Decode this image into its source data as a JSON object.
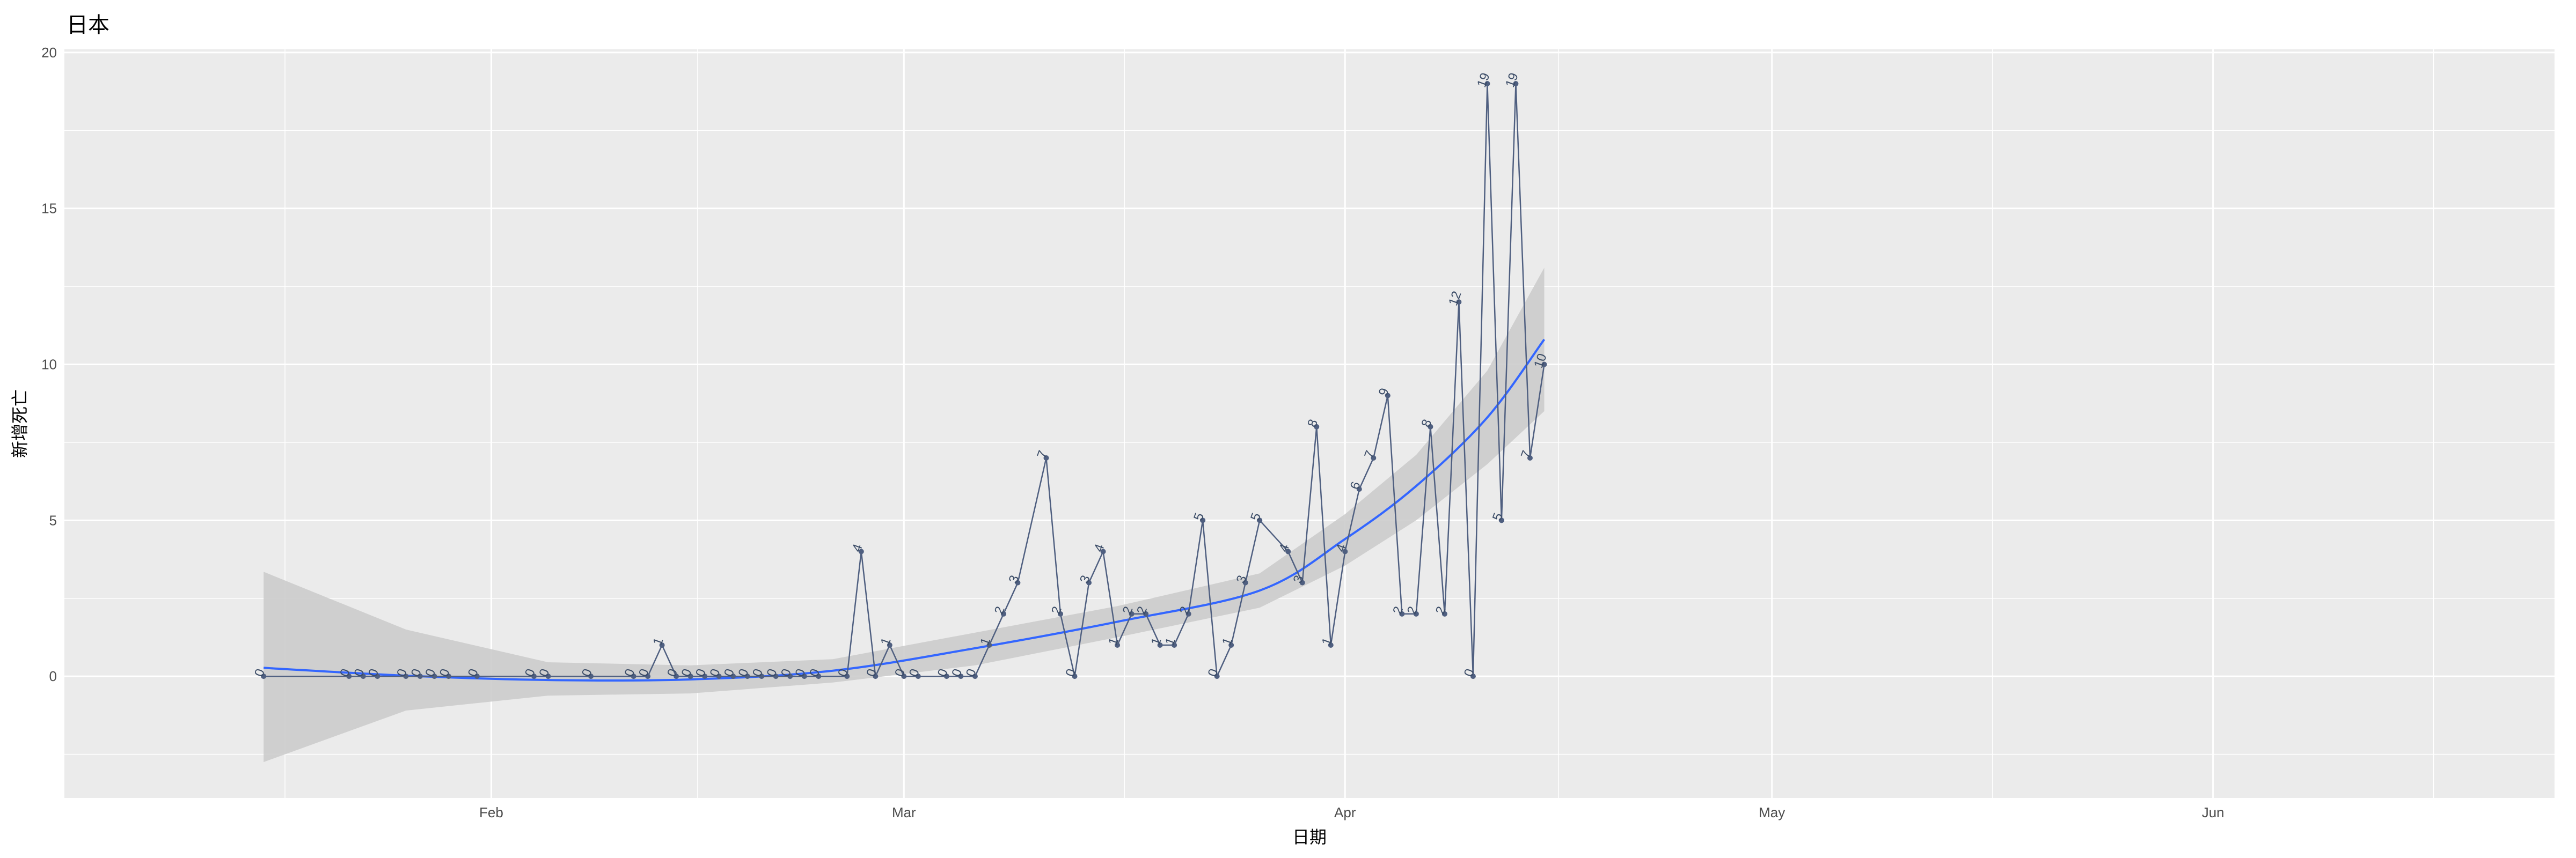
{
  "chart_data": {
    "type": "line",
    "title": "日本",
    "xlabel": "日期",
    "ylabel": "新增死亡",
    "x_range": [
      "2020-01-02",
      "2020-06-25"
    ],
    "ylim": [
      -3.9,
      20.1
    ],
    "y_ticks": [
      0,
      5,
      10,
      15,
      20
    ],
    "x_ticks": [
      {
        "date": "2020-02-01",
        "label": "Feb"
      },
      {
        "date": "2020-03-01",
        "label": "Mar"
      },
      {
        "date": "2020-04-01",
        "label": "Apr"
      },
      {
        "date": "2020-05-01",
        "label": "May"
      },
      {
        "date": "2020-06-01",
        "label": "Jun"
      }
    ],
    "grid": true,
    "colors": {
      "panel": "#ebebeb",
      "grid": "#ffffff",
      "line": "#4f5f80",
      "smooth": "#3366ff",
      "ribbon": "#cccccc"
    },
    "series": [
      {
        "values": [
          [
            "2020-01-16",
            0
          ],
          [
            "2020-01-22",
            0
          ],
          [
            "2020-01-23",
            0
          ],
          [
            "2020-01-24",
            0
          ],
          [
            "2020-01-26",
            0
          ],
          [
            "2020-01-27",
            0
          ],
          [
            "2020-01-28",
            0
          ],
          [
            "2020-01-29",
            0
          ],
          [
            "2020-01-31",
            0
          ],
          [
            "2020-02-04",
            0
          ],
          [
            "2020-02-05",
            0
          ],
          [
            "2020-02-08",
            0
          ],
          [
            "2020-02-11",
            0
          ],
          [
            "2020-02-12",
            0
          ],
          [
            "2020-02-13",
            1
          ],
          [
            "2020-02-14",
            0
          ],
          [
            "2020-02-15",
            0
          ],
          [
            "2020-02-16",
            0
          ],
          [
            "2020-02-17",
            0
          ],
          [
            "2020-02-18",
            0
          ],
          [
            "2020-02-19",
            0
          ],
          [
            "2020-02-20",
            0
          ],
          [
            "2020-02-21",
            0
          ],
          [
            "2020-02-22",
            0
          ],
          [
            "2020-02-23",
            0
          ],
          [
            "2020-02-24",
            0
          ],
          [
            "2020-02-26",
            0
          ],
          [
            "2020-02-27",
            4
          ],
          [
            "2020-02-28",
            0
          ],
          [
            "2020-02-29",
            1
          ],
          [
            "2020-03-01",
            0
          ],
          [
            "2020-03-02",
            0
          ],
          [
            "2020-03-04",
            0
          ],
          [
            "2020-03-05",
            0
          ],
          [
            "2020-03-06",
            0
          ],
          [
            "2020-03-07",
            1
          ],
          [
            "2020-03-08",
            2
          ],
          [
            "2020-03-09",
            3
          ],
          [
            "2020-03-11",
            7
          ],
          [
            "2020-03-12",
            2
          ],
          [
            "2020-03-13",
            0
          ],
          [
            "2020-03-14",
            3
          ],
          [
            "2020-03-15",
            4
          ],
          [
            "2020-03-16",
            1
          ],
          [
            "2020-03-17",
            2
          ],
          [
            "2020-03-18",
            2
          ],
          [
            "2020-03-19",
            1
          ],
          [
            "2020-03-20",
            1
          ],
          [
            "2020-03-21",
            2
          ],
          [
            "2020-03-22",
            5
          ],
          [
            "2020-03-23",
            0
          ],
          [
            "2020-03-24",
            1
          ],
          [
            "2020-03-25",
            3
          ],
          [
            "2020-03-26",
            5
          ],
          [
            "2020-03-28",
            4
          ],
          [
            "2020-03-29",
            3
          ],
          [
            "2020-03-30",
            8
          ],
          [
            "2020-03-31",
            1
          ],
          [
            "2020-04-01",
            4
          ],
          [
            "2020-04-02",
            6
          ],
          [
            "2020-04-03",
            7
          ],
          [
            "2020-04-04",
            9
          ],
          [
            "2020-04-05",
            2
          ],
          [
            "2020-04-06",
            2
          ],
          [
            "2020-04-07",
            8
          ],
          [
            "2020-04-08",
            2
          ],
          [
            "2020-04-09",
            12
          ],
          [
            "2020-04-10",
            0
          ],
          [
            "2020-04-11",
            19
          ],
          [
            "2020-04-12",
            5
          ],
          [
            "2020-04-13",
            19
          ],
          [
            "2020-04-14",
            7
          ],
          [
            "2020-04-15",
            10
          ]
        ]
      }
    ],
    "smooth": {
      "x": [
        "2020-01-16",
        "2020-01-26",
        "2020-02-05",
        "2020-02-15",
        "2020-02-25",
        "2020-03-06",
        "2020-03-16",
        "2020-03-26",
        "2020-04-01",
        "2020-04-06",
        "2020-04-11",
        "2020-04-15"
      ],
      "fit": [
        0.27,
        0.02,
        -0.12,
        -0.1,
        0.18,
        0.9,
        1.75,
        2.75,
        4.4,
        6.1,
        8.3,
        10.8
      ],
      "lower": [
        -2.75,
        -1.1,
        -0.62,
        -0.55,
        -0.2,
        0.35,
        1.25,
        2.2,
        3.55,
        5.0,
        6.8,
        8.5
      ],
      "upper": [
        3.35,
        1.5,
        0.45,
        0.35,
        0.55,
        1.4,
        2.25,
        3.3,
        5.2,
        7.1,
        9.8,
        13.1
      ]
    }
  }
}
